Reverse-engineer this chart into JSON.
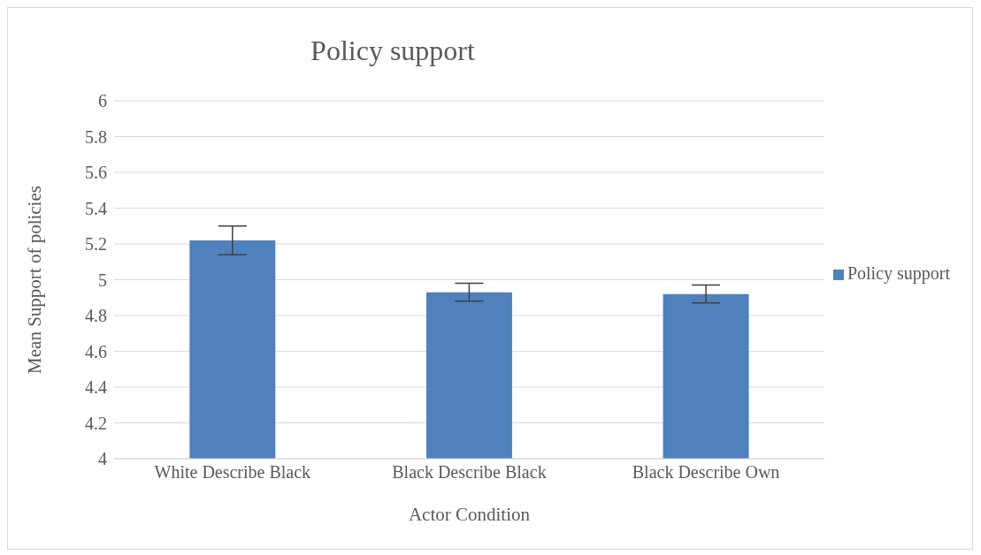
{
  "chart_data": {
    "type": "bar",
    "title": "Policy support",
    "xlabel": "Actor Condition",
    "ylabel": "Mean Support of policies",
    "categories": [
      "White Describe Black",
      "Black Describe Black",
      "Black Describe Own"
    ],
    "series": [
      {
        "name": "Policy support",
        "color": "#4f81bd",
        "values": [
          5.22,
          4.93,
          4.92
        ],
        "errors": [
          [
            5.14,
            5.3
          ],
          [
            4.88,
            4.98
          ],
          [
            4.87,
            4.97
          ]
        ]
      }
    ],
    "ylim": [
      4,
      6
    ],
    "yticks": [
      4,
      4.2,
      4.4,
      4.6,
      4.8,
      5,
      5.2,
      5.4,
      5.6,
      5.8,
      6
    ],
    "grid": "y",
    "legend": "right"
  }
}
